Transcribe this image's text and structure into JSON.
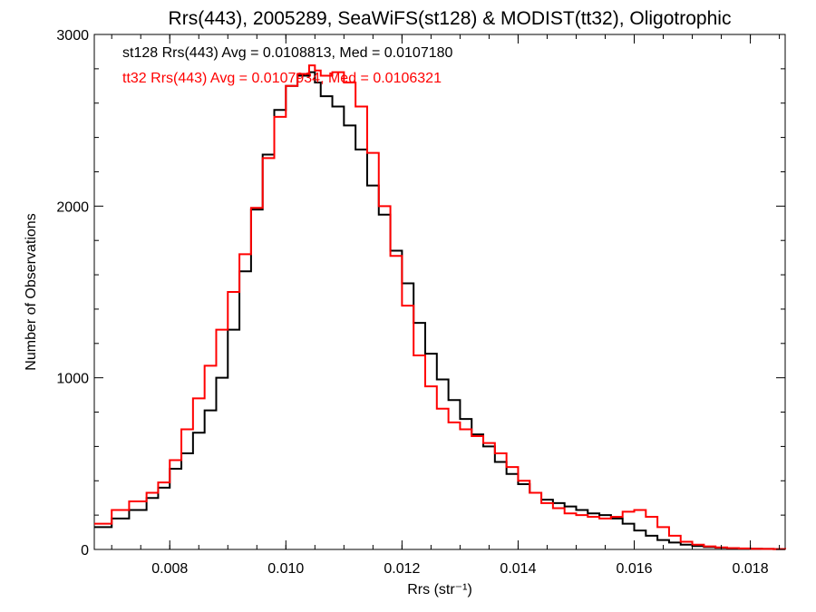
{
  "chart_data": {
    "type": "line",
    "title": "Rrs(443), 2005289, SeaWiFS(st128) & MODIST(tt32), Oligotrophic",
    "xlabel": "Rrs (str⁻¹)",
    "ylabel": "Number of Observations",
    "xlim": [
      0.0067,
      0.0186
    ],
    "ylim": [
      0,
      3000
    ],
    "xticks": [
      "0.008",
      "0.010",
      "0.012",
      "0.014",
      "0.016",
      "0.018"
    ],
    "yticks": [
      "0",
      "1000",
      "2000",
      "3000"
    ],
    "grid": false,
    "annotations": [
      "st128 Rrs(443) Avg = 0.0108813, Med = 0.0107180",
      "tt32 Rrs(443) Avg = 0.0107934, Med = 0.0106321"
    ],
    "series": [
      {
        "color": "#000000",
        "x": [
          0.0067,
          0.007,
          0.0073,
          0.0076,
          0.0078,
          0.008,
          0.0082,
          0.0084,
          0.0086,
          0.0088,
          0.009,
          0.0092,
          0.0094,
          0.0096,
          0.0098,
          0.01,
          0.0102,
          0.0104,
          0.0105,
          0.0106,
          0.0108,
          0.011,
          0.0112,
          0.0114,
          0.0116,
          0.0118,
          0.012,
          0.0122,
          0.0124,
          0.0126,
          0.0128,
          0.013,
          0.0132,
          0.0134,
          0.0136,
          0.0138,
          0.014,
          0.0142,
          0.0144,
          0.0146,
          0.0148,
          0.015,
          0.0152,
          0.0154,
          0.0156,
          0.0158,
          0.016,
          0.0162,
          0.0164,
          0.0166,
          0.0168,
          0.017,
          0.0172,
          0.0174,
          0.0176,
          0.0178,
          0.018,
          0.0182,
          0.0184,
          0.0186
        ],
        "y": [
          130,
          180,
          230,
          300,
          360,
          470,
          560,
          680,
          810,
          1000,
          1280,
          1620,
          1980,
          2300,
          2560,
          2700,
          2760,
          2780,
          2720,
          2640,
          2580,
          2470,
          2330,
          2120,
          1950,
          1740,
          1550,
          1320,
          1140,
          990,
          870,
          760,
          670,
          600,
          510,
          440,
          380,
          330,
          290,
          270,
          250,
          230,
          210,
          200,
          180,
          150,
          110,
          80,
          55,
          40,
          28,
          20,
          14,
          10,
          7,
          5,
          4,
          3,
          2,
          1
        ]
      },
      {
        "color": "#ff0000",
        "x": [
          0.0067,
          0.007,
          0.0073,
          0.0076,
          0.0078,
          0.008,
          0.0082,
          0.0084,
          0.0086,
          0.0088,
          0.009,
          0.0092,
          0.0094,
          0.0096,
          0.0098,
          0.01,
          0.0102,
          0.0104,
          0.0105,
          0.0106,
          0.0108,
          0.011,
          0.0112,
          0.0114,
          0.0116,
          0.0118,
          0.012,
          0.0122,
          0.0124,
          0.0126,
          0.0128,
          0.013,
          0.0132,
          0.0134,
          0.0136,
          0.0138,
          0.014,
          0.0142,
          0.0144,
          0.0146,
          0.0148,
          0.015,
          0.0152,
          0.0154,
          0.0156,
          0.0158,
          0.016,
          0.0162,
          0.0164,
          0.0166,
          0.0168,
          0.017,
          0.0172,
          0.0174,
          0.0176,
          0.0178,
          0.018,
          0.0182,
          0.0184,
          0.0186
        ],
        "y": [
          150,
          230,
          280,
          330,
          390,
          520,
          700,
          880,
          1070,
          1280,
          1500,
          1720,
          1990,
          2280,
          2520,
          2700,
          2770,
          2820,
          2790,
          2760,
          2780,
          2720,
          2580,
          2310,
          2000,
          1710,
          1420,
          1130,
          950,
          820,
          740,
          700,
          660,
          620,
          560,
          480,
          400,
          330,
          270,
          240,
          210,
          200,
          190,
          180,
          190,
          220,
          230,
          190,
          130,
          80,
          45,
          28,
          18,
          12,
          8,
          6,
          4,
          3,
          2,
          1
        ]
      }
    ]
  }
}
